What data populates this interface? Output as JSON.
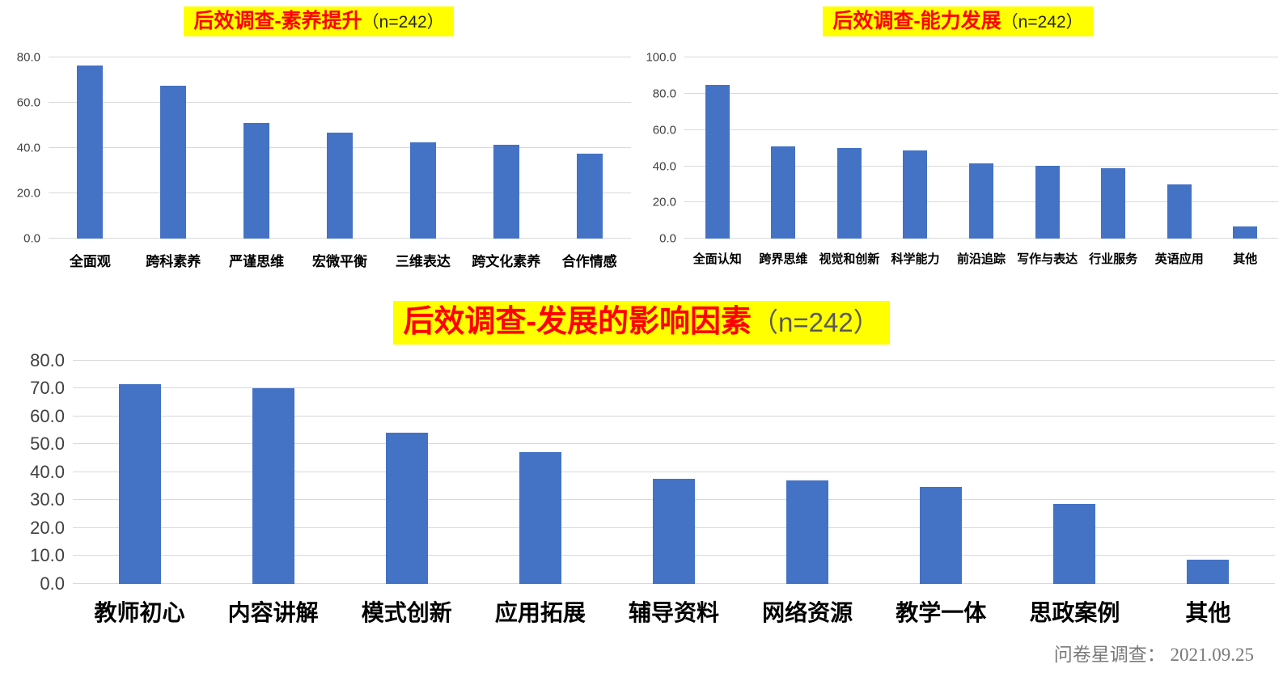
{
  "footer": {
    "source": "问卷星调查： 2021.09.25"
  },
  "colors": {
    "bar": "#4472C4",
    "title_highlight": "#FFFF00",
    "title_text": "#FF0000",
    "gridline": "#d9d9d9"
  },
  "chart_data": [
    {
      "type": "bar",
      "title_red": "后效调查-素养提升",
      "title_n": "（n=242）",
      "categories": [
        "全面观",
        "跨科素养",
        "严谨思维",
        "宏微平衡",
        "三维表达",
        "跨文化素养",
        "合作情感"
      ],
      "values": [
        76.5,
        67.5,
        51,
        47,
        42.5,
        41.5,
        37.5
      ],
      "xlabel": "",
      "ylabel": "",
      "ylim": [
        0,
        80
      ],
      "yticks": [
        0,
        20,
        40,
        60,
        80
      ],
      "ytick_labels": [
        "0.0",
        "20.0",
        "40.0",
        "60.0",
        "80.0"
      ],
      "grid": true,
      "legend": false,
      "bar_color": "#4472C4"
    },
    {
      "type": "bar",
      "title_red": "后效调查-能力发展",
      "title_n": "（n=242）",
      "categories": [
        "全面认知",
        "跨界思维",
        "视觉和创新",
        "科学能力",
        "前沿追踪",
        "写作与表达",
        "行业服务",
        "英语应用",
        "其他"
      ],
      "values": [
        85,
        51,
        50,
        49,
        41.5,
        40.5,
        39,
        30,
        7
      ],
      "xlabel": "",
      "ylabel": "",
      "ylim": [
        0,
        100
      ],
      "yticks": [
        0,
        20,
        40,
        60,
        80,
        100
      ],
      "ytick_labels": [
        "0.0",
        "20.0",
        "40.0",
        "60.0",
        "80.0",
        "100.0"
      ],
      "grid": true,
      "legend": false,
      "bar_color": "#4472C4"
    },
    {
      "type": "bar",
      "title_red": "后效调查-发展的影响因素",
      "title_n": "（n=242）",
      "categories": [
        "教师初心",
        "内容讲解",
        "模式创新",
        "应用拓展",
        "辅导资料",
        "网络资源",
        "教学一体",
        "思政案例",
        "其他"
      ],
      "values": [
        71.5,
        70,
        54,
        47,
        37.5,
        37,
        34.5,
        28.5,
        8.5
      ],
      "xlabel": "",
      "ylabel": "",
      "ylim": [
        0,
        80
      ],
      "yticks": [
        0,
        10,
        20,
        30,
        40,
        50,
        60,
        70,
        80
      ],
      "ytick_labels": [
        "0.0",
        "10.0",
        "20.0",
        "30.0",
        "40.0",
        "50.0",
        "60.0",
        "70.0",
        "80.0"
      ],
      "grid": true,
      "legend": false,
      "bar_color": "#4472C4"
    }
  ]
}
